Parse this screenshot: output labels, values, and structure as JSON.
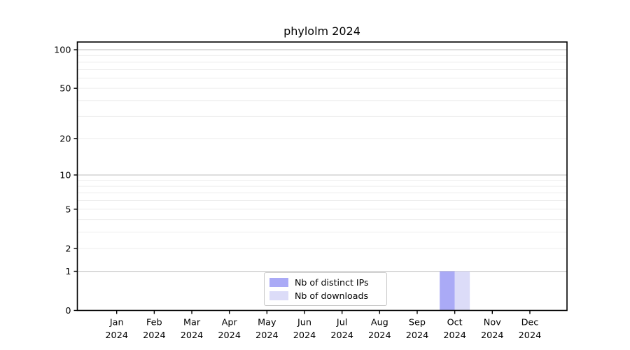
{
  "chart_data": {
    "type": "bar",
    "title": "phylolm 2024",
    "categories": [
      {
        "month": "Jan",
        "year": "2024"
      },
      {
        "month": "Feb",
        "year": "2024"
      },
      {
        "month": "Mar",
        "year": "2024"
      },
      {
        "month": "Apr",
        "year": "2024"
      },
      {
        "month": "May",
        "year": "2024"
      },
      {
        "month": "Jun",
        "year": "2024"
      },
      {
        "month": "Jul",
        "year": "2024"
      },
      {
        "month": "Aug",
        "year": "2024"
      },
      {
        "month": "Sep",
        "year": "2024"
      },
      {
        "month": "Oct",
        "year": "2024"
      },
      {
        "month": "Nov",
        "year": "2024"
      },
      {
        "month": "Dec",
        "year": "2024"
      }
    ],
    "series": [
      {
        "name": "Nb of distinct IPs",
        "color": "#aaaaf6",
        "values": [
          0,
          0,
          0,
          0,
          0,
          0,
          0,
          0,
          0,
          1,
          0,
          0
        ]
      },
      {
        "name": "Nb of downloads",
        "color": "#dcdcf8",
        "values": [
          0,
          0,
          0,
          0,
          0,
          0,
          0,
          0,
          0,
          1,
          0,
          0
        ]
      }
    ],
    "y_ticks": [
      0,
      1,
      2,
      5,
      10,
      20,
      50,
      100
    ],
    "ylim": [
      0,
      100
    ],
    "y_scale": "symlog",
    "grid": "horizontal",
    "legend_position": "lower center",
    "colors": {
      "major_grid": "#c9c9c9",
      "minor_grid": "#ededed",
      "axis": "#000000",
      "background": "#ffffff"
    }
  }
}
